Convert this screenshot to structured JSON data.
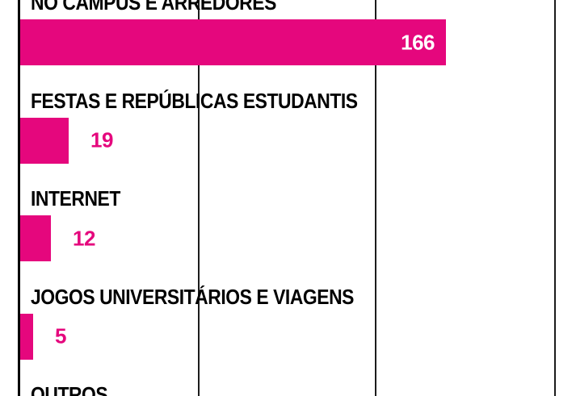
{
  "chart_data": {
    "type": "bar",
    "orientation": "horizontal",
    "title": "",
    "xlabel": "",
    "ylabel": "",
    "categories": [
      "NO CAMPUS E ARREDORES",
      "FESTAS E REPÚBLICAS ESTUDANTIS",
      "INTERNET",
      "JOGOS UNIVERSITÁRIOS E VIAGENS",
      "OUTROS"
    ],
    "values": [
      166,
      19,
      12,
      5,
      null
    ],
    "value_labels": [
      "166",
      "19",
      "12",
      "5",
      ""
    ],
    "xlim": [
      0,
      210
    ],
    "grid": "vertical gridlines, no tick labels visible",
    "legend": "none",
    "notes": "top category label clipped at top edge; OUTROS row clipped at bottom edge"
  },
  "colors": {
    "bar": "#e5077d",
    "value_outside": "#e5077d",
    "value_inside": "#ffffff",
    "label": "#000000",
    "gridline": "#1c1c1c",
    "background": "#ffffff"
  }
}
